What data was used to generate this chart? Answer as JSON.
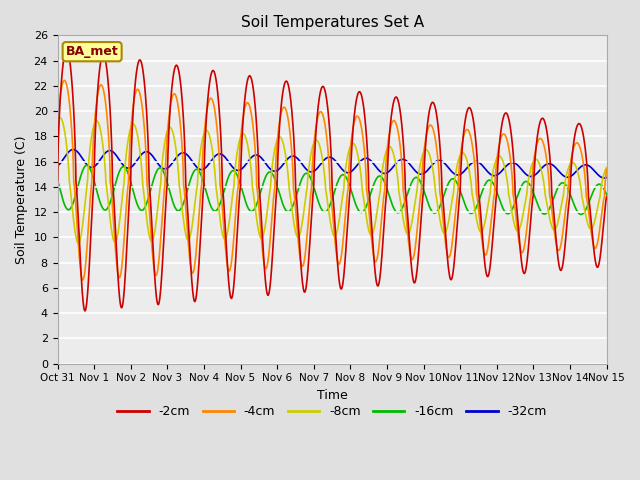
{
  "title": "Soil Temperatures Set A",
  "xlabel": "Time",
  "ylabel": "Soil Temperature (C)",
  "annotation": "BA_met",
  "ylim": [
    0,
    26
  ],
  "yticks": [
    0,
    2,
    4,
    6,
    8,
    10,
    12,
    14,
    16,
    18,
    20,
    22,
    24,
    26
  ],
  "xtick_labels": [
    "Oct 31",
    "Nov 1",
    "Nov 2",
    "Nov 3",
    "Nov 4",
    "Nov 5",
    "Nov 6",
    "Nov 7",
    "Nov 8",
    "Nov 9",
    "Nov 10",
    "Nov 11",
    "Nov 12",
    "Nov 13",
    "Nov 14",
    "Nov 15"
  ],
  "legend_labels": [
    "-2cm",
    "-4cm",
    "-8cm",
    "-16cm",
    "-32cm"
  ],
  "legend_colors": [
    "#cc0000",
    "#ff8800",
    "#cccc00",
    "#00bb00",
    "#0000cc"
  ],
  "background_color": "#e0e0e0",
  "plot_bg_color": "#ececec",
  "grid_color": "#ffffff",
  "series": {
    "colors": [
      "#cc0000",
      "#ff8800",
      "#cccc00",
      "#00bb00",
      "#0000cc"
    ],
    "amp_start": [
      10.5,
      8.0,
      5.0,
      1.8,
      0.7
    ],
    "amp_end": [
      5.5,
      4.0,
      2.5,
      1.2,
      0.5
    ],
    "mean_start": [
      14.5,
      14.5,
      14.5,
      14.0,
      16.3
    ],
    "mean_end": [
      13.2,
      13.2,
      13.2,
      13.0,
      15.2
    ],
    "phase_frac": [
      0.0,
      0.06,
      0.18,
      0.45,
      -0.18
    ],
    "n_points": 2000,
    "start_day": 0,
    "end_day": 15
  }
}
